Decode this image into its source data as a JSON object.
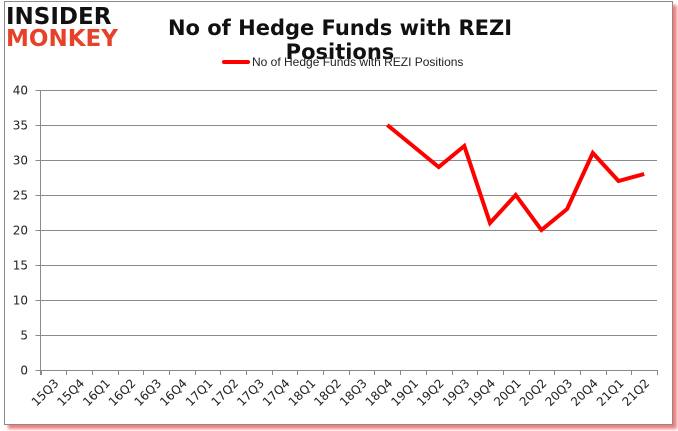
{
  "logo": {
    "line1": "INSIDER",
    "line2": "MONKEY"
  },
  "colors": {
    "series": "#ff0000",
    "grid": "#8a8a8a",
    "logo_red": "#e8412a",
    "shadow": "#f08080"
  },
  "chart_data": {
    "type": "line",
    "title": "No of Hedge Funds with REZI Positions",
    "xlabel": "",
    "ylabel": "",
    "ylim": [
      0,
      40
    ],
    "yticks": [
      0,
      5,
      10,
      15,
      20,
      25,
      30,
      35,
      40
    ],
    "grid": true,
    "legend_position": "top",
    "categories": [
      "15Q3",
      "15Q4",
      "16Q1",
      "16Q2",
      "16Q3",
      "16Q4",
      "17Q1",
      "17Q2",
      "17Q3",
      "17Q4",
      "18Q1",
      "18Q2",
      "18Q3",
      "18Q4",
      "19Q1",
      "19Q2",
      "19Q3",
      "19Q4",
      "20Q1",
      "20Q2",
      "20Q3",
      "20Q4",
      "21Q1",
      "21Q2"
    ],
    "series": [
      {
        "name": "No of Hedge Funds with REZI Positions",
        "values": [
          null,
          null,
          null,
          null,
          null,
          null,
          null,
          null,
          null,
          null,
          null,
          null,
          null,
          35,
          32,
          29,
          32,
          21,
          25,
          20,
          23,
          31,
          27,
          28
        ]
      }
    ]
  }
}
